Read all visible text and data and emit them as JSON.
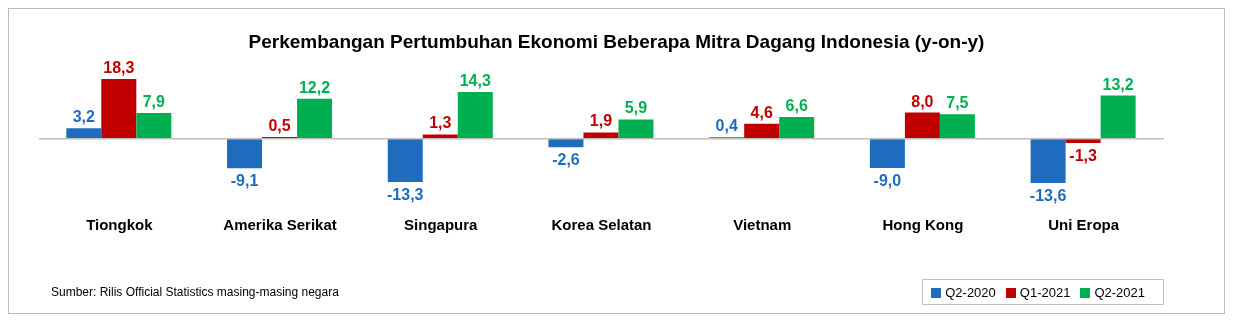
{
  "chart_data": {
    "type": "bar",
    "title": "Perkembangan Pertumbuhan Ekonomi Beberapa Mitra Dagang Indonesia (y-on-y)",
    "categories": [
      "Tiongkok",
      "Amerika Serikat",
      "Singapura",
      "Korea Selatan",
      "Vietnam",
      "Hong Kong",
      "Uni Eropa"
    ],
    "series": [
      {
        "name": "Q2-2020",
        "color": "#1f6cbf",
        "values": [
          3.2,
          -9.1,
          -13.3,
          -2.6,
          0.4,
          -9.0,
          -13.6
        ],
        "value_labels": [
          "3,2",
          "-9,1",
          "-13,3",
          "-2,6",
          "0,4",
          "-9,0",
          "-13,6"
        ]
      },
      {
        "name": "Q1-2021",
        "color": "#c00000",
        "values": [
          18.3,
          0.5,
          1.3,
          1.9,
          4.6,
          8.0,
          -1.3
        ],
        "value_labels": [
          "18,3",
          "0,5",
          "1,3",
          "1,9",
          "4,6",
          "8,0",
          "-1,3"
        ]
      },
      {
        "name": "Q2-2021",
        "color": "#00b050",
        "values": [
          7.9,
          12.2,
          14.3,
          5.9,
          6.6,
          7.5,
          13.2
        ],
        "value_labels": [
          "7,9",
          "12,2",
          "14,3",
          "5,9",
          "6,6",
          "7,5",
          "13,2"
        ]
      }
    ],
    "annotations": [
      "Sumber: Rilis Official Statistics masing-masing negara"
    ],
    "legend": "bottom right",
    "grid": false
  }
}
